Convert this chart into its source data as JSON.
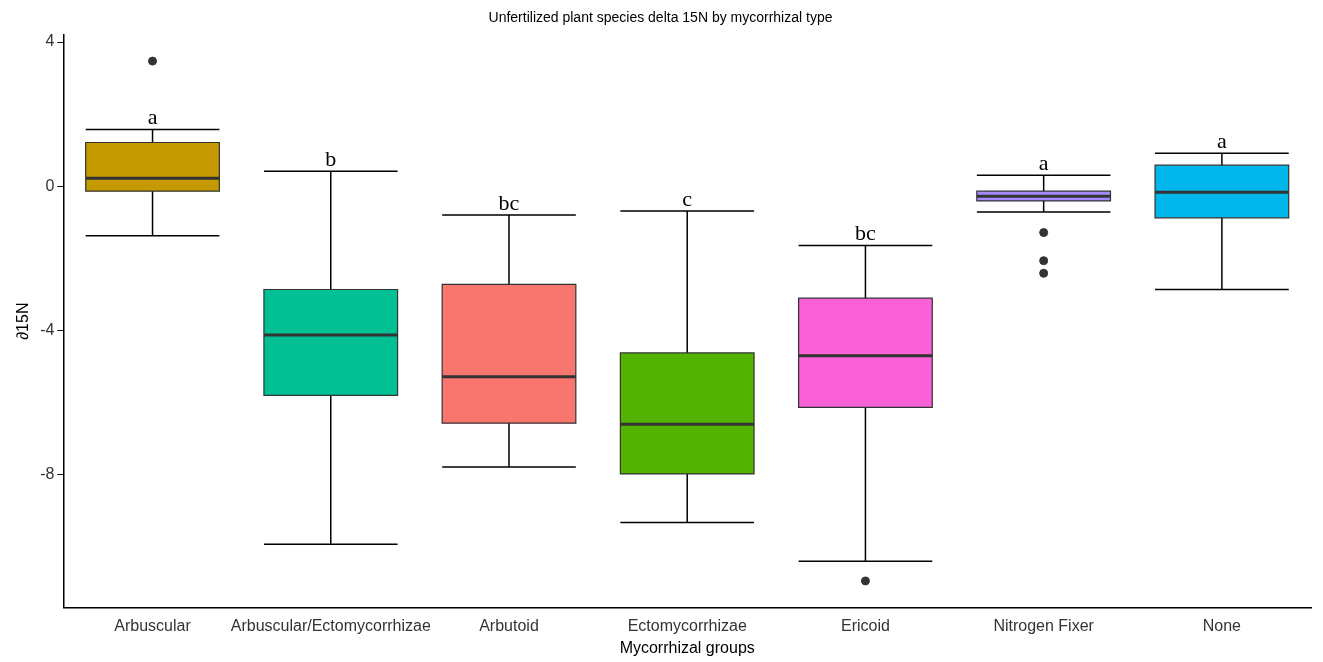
{
  "chart_data": {
    "type": "box",
    "title": "Unfertilized plant species delta 15N by mycorrhizal type",
    "xlabel": "Mycorrhizal groups",
    "ylabel": "∂15N",
    "categories": [
      "Arbuscular",
      "Arbuscular/Ectomycorrhizae",
      "Arbutoid",
      "Ectomycorrhizae",
      "Ericoid",
      "Nitrogen Fixer",
      "None"
    ],
    "colors": [
      "#c49a00",
      "#00c094",
      "#f8766d",
      "#53b400",
      "#fb61d7",
      "#a58aff",
      "#00b6eb"
    ],
    "boxes": [
      {
        "low": -1.38,
        "q1": -0.14,
        "median": 0.22,
        "q3": 1.21,
        "high": 1.57,
        "outliers": [
          3.47
        ]
      },
      {
        "low": -9.94,
        "q1": -5.81,
        "median": -4.13,
        "q3": -2.87,
        "high": 0.41
      },
      {
        "low": -7.8,
        "q1": -6.58,
        "median": -5.29,
        "q3": -2.73,
        "high": -0.8
      },
      {
        "low": -9.34,
        "q1": -7.99,
        "median": -6.61,
        "q3": -4.63,
        "high": -0.69
      },
      {
        "low": -10.41,
        "q1": -6.14,
        "median": -4.71,
        "q3": -3.11,
        "high": -1.65,
        "outliers": [
          -10.96
        ]
      },
      {
        "low": -0.72,
        "q1": -0.41,
        "median": -0.28,
        "q3": -0.14,
        "high": 0.3,
        "outliers": [
          -1.29,
          -2.07,
          -2.42
        ]
      },
      {
        "low": -2.87,
        "q1": -0.88,
        "median": -0.17,
        "q3": 0.58,
        "high": 0.91
      }
    ],
    "annotations": [
      {
        "text": "a",
        "x": "Arbuscular",
        "y": 1.57
      },
      {
        "text": "b",
        "x": "Arbuscular/Ectomycorrhizae",
        "y": 0.41
      },
      {
        "text": "bc",
        "x": "Arbutoid",
        "y": -0.8
      },
      {
        "text": "c",
        "x": "Ectomycorrhizae",
        "y": -0.69
      },
      {
        "text": "bc",
        "x": "Ericoid",
        "y": -1.65
      },
      {
        "text": "a",
        "x": "Nitrogen Fixer",
        "y": 0.3
      },
      {
        "text": "a",
        "x": "None",
        "y": 0.91
      }
    ],
    "ylim": [
      -11.7,
      4.2
    ],
    "yticks": [
      -8,
      -4,
      0,
      4
    ],
    "grid": false,
    "legend": false
  }
}
